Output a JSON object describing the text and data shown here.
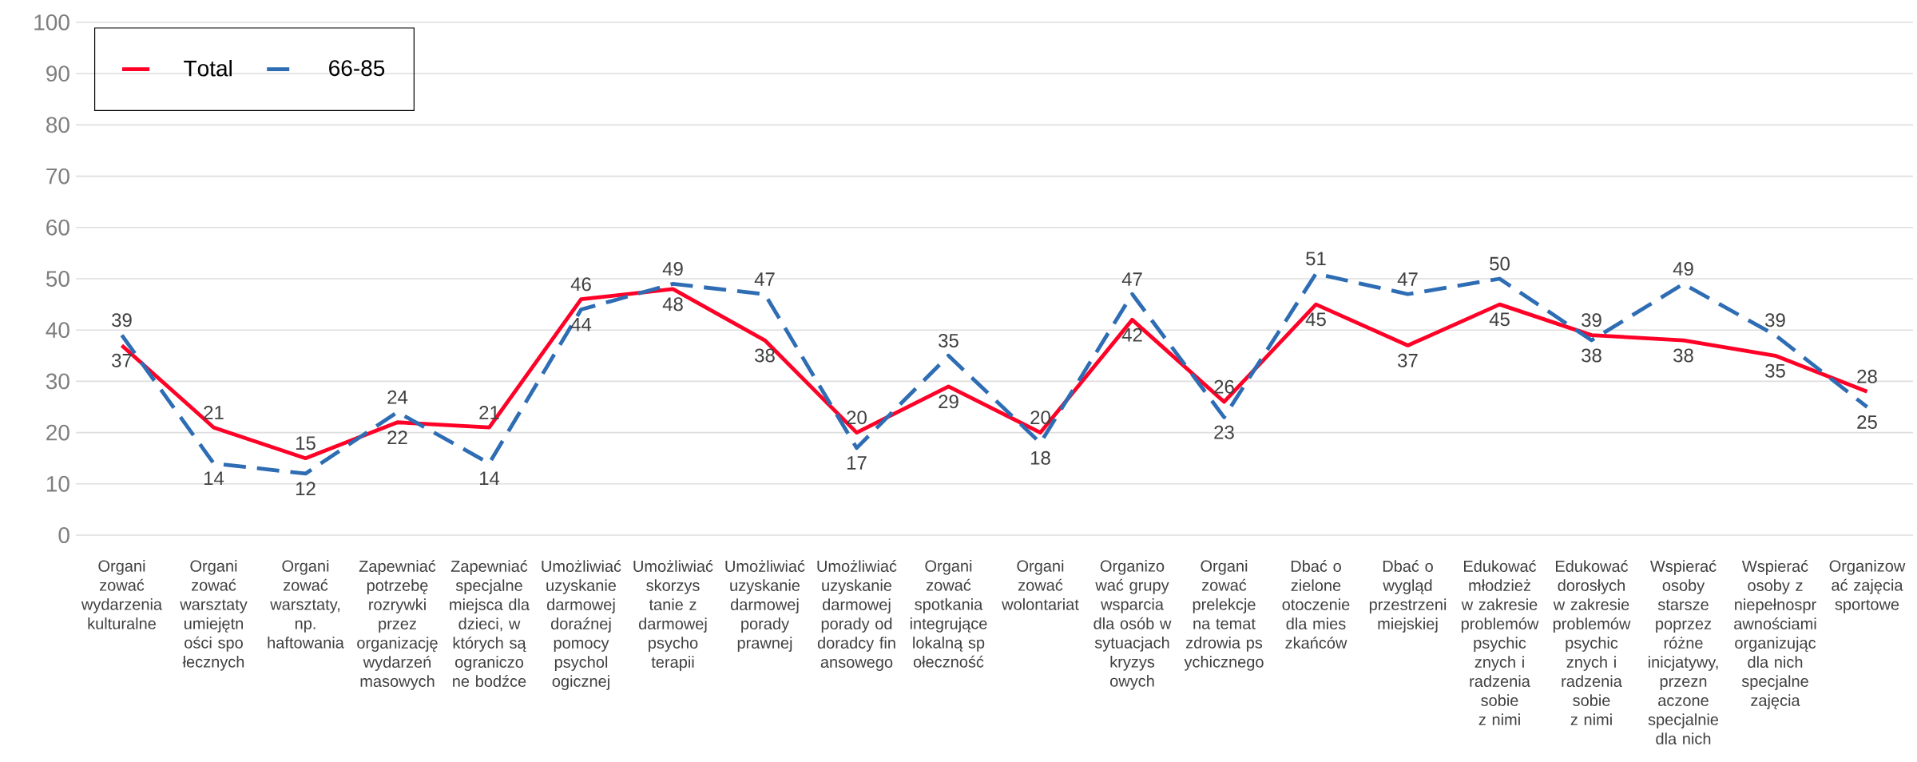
{
  "chart_data": {
    "type": "line",
    "categories": [
      "Organizować wydarzenia kulturalne",
      "Organizować warsztaty umiejętności społecznych",
      "Organizować warsztaty, np. haftowania",
      "Zapewniać potrzebę rozrywki przez organizację wydarzeń masowych",
      "Zapewniać specjalne miejsca dla dzieci, w których są ograniczone bodźce",
      "Umożliwiać uzyskanie darmowej doraźnej pomocy psychologicznej",
      "Umożliwiać skorzystanie z darmowej psychoterapii",
      "Umożliwiać uzyskanie darmowej porady prawnej",
      "Umożliwiać uzyskanie darmowej porady od doradcy finansowego",
      "Organizować spotkania integrujące lokalną społeczność",
      "Organizować wolontariat",
      "Organizować grupy wsparcia dla osób w sytuacjach kryzysowych",
      "Organizować prelekcje na temat zdrowia psychicznego",
      "Dbać o zielone otoczenie dla mieszkańców",
      "Dbać o wygląd przestrzeni miejskiej",
      "Edukować młodzież w zakresie problemów psychicznych i radzenia sobie z nimi",
      "Edukować dorosłych w zakresie problemów psychicznych i radzenia sobie z nimi",
      "Wspierać osoby starsze poprzez różne inicjatywy, przeznaczone specjalnie dla nich",
      "Wspierać osoby z niepełnosprawnościami organizując dla nich specjalne zajęcia",
      "Organizować zajęcia sportowe"
    ],
    "series": [
      {
        "name": "Total",
        "color": "#ff0027",
        "line_style": "solid",
        "values": [
          37,
          21,
          15,
          22,
          21,
          46,
          48,
          38,
          20,
          29,
          20,
          42,
          26,
          45,
          37,
          45,
          39,
          38,
          35,
          28
        ]
      },
      {
        "name": "66-85",
        "color": "#2e6db4",
        "line_style": "dashed",
        "values": [
          39,
          14,
          12,
          24,
          14,
          44,
          49,
          47,
          17,
          35,
          18,
          47,
          23,
          51,
          47,
          50,
          38,
          49,
          39,
          25
        ]
      }
    ],
    "ylim": [
      0,
      100
    ],
    "yticks": [
      0,
      10,
      20,
      30,
      40,
      50,
      60,
      70,
      80,
      90,
      100
    ],
    "grid": "y",
    "legend": "top left",
    "marker": "none",
    "data_labels": true
  }
}
